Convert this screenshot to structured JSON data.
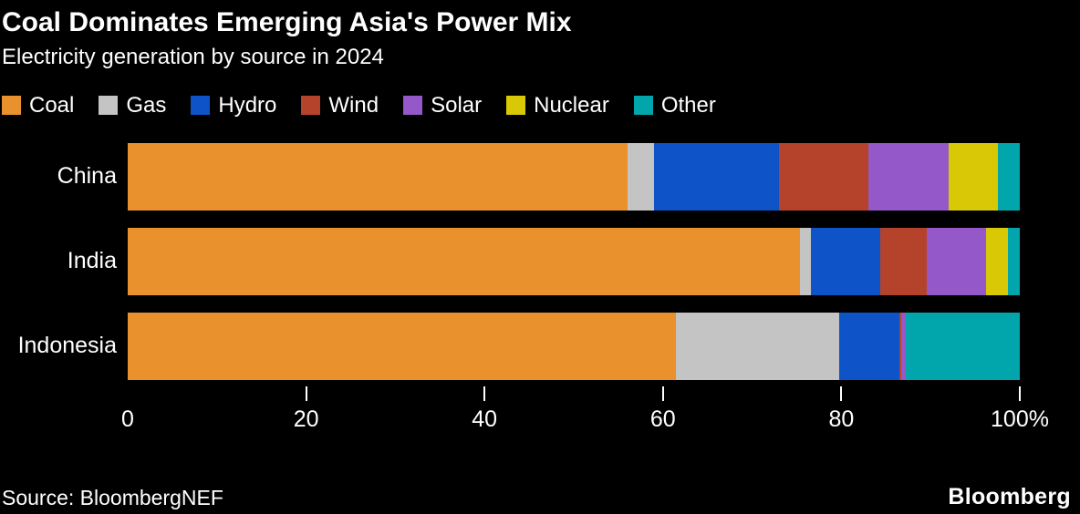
{
  "title": "Coal Dominates Emerging Asia's Power Mix",
  "subtitle": "Electricity generation by source in 2024",
  "source": "Source: BloombergNEF",
  "brand": "Bloomberg",
  "colors": {
    "background": "#000000",
    "text": "#ffffff",
    "coal": "#E8912D",
    "gas": "#C4C4C4",
    "hydro": "#0E54C8",
    "wind": "#B5432B",
    "solar": "#9558C8",
    "nuclear": "#D9C806",
    "other": "#00A6AC"
  },
  "chart_data": {
    "type": "bar",
    "stacked": true,
    "orientation": "horizontal",
    "title": "Coal Dominates Emerging Asia's Power Mix",
    "subtitle": "Electricity generation by source in 2024",
    "categories": [
      "China",
      "India",
      "Indonesia"
    ],
    "series": [
      {
        "name": "Coal",
        "color": "#E8912D",
        "values": [
          56.0,
          75.4,
          61.5
        ]
      },
      {
        "name": "Gas",
        "color": "#C4C4C4",
        "values": [
          3.0,
          1.2,
          18.3
        ]
      },
      {
        "name": "Hydro",
        "color": "#0E54C8",
        "values": [
          14.0,
          7.8,
          6.7
        ]
      },
      {
        "name": "Wind",
        "color": "#B5432B",
        "values": [
          10.0,
          5.2,
          0.2
        ]
      },
      {
        "name": "Solar",
        "color": "#9558C8",
        "values": [
          9.0,
          6.6,
          0.5
        ]
      },
      {
        "name": "Nuclear",
        "color": "#D9C806",
        "values": [
          5.5,
          2.5,
          0.0
        ]
      },
      {
        "name": "Other",
        "color": "#00A6AC",
        "values": [
          2.5,
          1.3,
          12.8
        ]
      }
    ],
    "xlabel": "",
    "ylabel": "",
    "xlim": [
      0,
      100
    ],
    "x_ticks": [
      0,
      20,
      40,
      60,
      80,
      100
    ],
    "x_tick_labels": [
      "0",
      "20",
      "40",
      "60",
      "80",
      "100%"
    ],
    "grid": false,
    "legend_position": "top"
  }
}
